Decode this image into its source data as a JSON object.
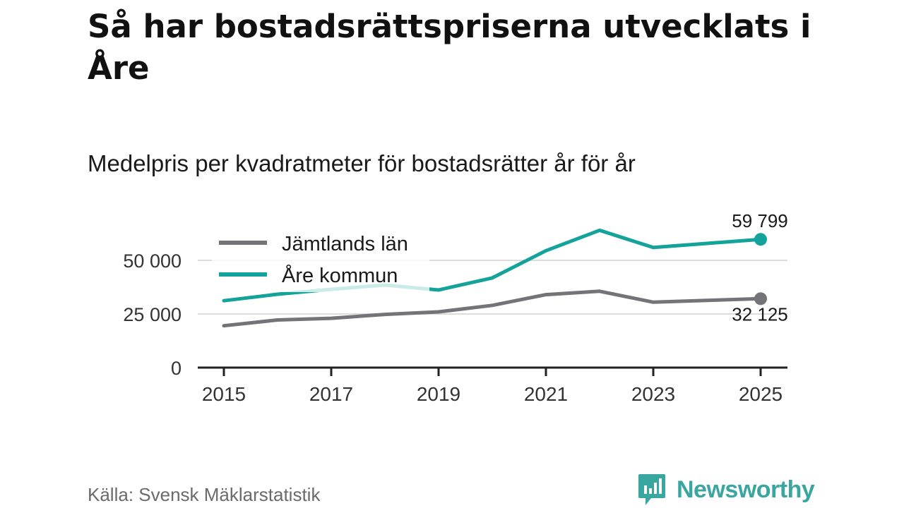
{
  "header": {
    "title": "Så har bostadsrättspriserna utvecklats i Åre",
    "subtitle": "Medelpris per kvadratmeter för bostadsrätter år för år"
  },
  "footer": {
    "source": "Källa: Svensk Mäklarstatistik",
    "brand": "Newsworthy"
  },
  "colors": {
    "jamtland": "#737378",
    "are": "#13a39a",
    "grid": "#dcdcdc",
    "axis": "#222222"
  },
  "chart_data": {
    "type": "line",
    "title": "Medelpris per kvadratmeter för bostadsrätter år för år",
    "xlabel": "",
    "ylabel": "",
    "x": [
      2015,
      2016,
      2017,
      2018,
      2019,
      2020,
      2021,
      2022,
      2023,
      2024,
      2025
    ],
    "x_ticks": [
      "2015",
      "2017",
      "2019",
      "2021",
      "2023",
      "2025"
    ],
    "y_ticks": [
      0,
      25000,
      50000
    ],
    "y_tick_labels": [
      "0",
      "25 000",
      "50 000"
    ],
    "xlim": [
      2015,
      2025
    ],
    "ylim": [
      0,
      62000
    ],
    "legend_position": "top-left",
    "series": [
      {
        "name": "Jämtlands län",
        "color": "#737378",
        "values": [
          19500,
          22200,
          23000,
          24800,
          26000,
          29000,
          34000,
          35600,
          30500,
          31300,
          32125
        ],
        "end_label": "32 125"
      },
      {
        "name": "Åre kommun",
        "color": "#13a39a",
        "values": [
          31200,
          34200,
          36500,
          38500,
          36200,
          41800,
          54500,
          64000,
          56000,
          57900,
          59799
        ],
        "end_label": "59 799"
      }
    ]
  }
}
